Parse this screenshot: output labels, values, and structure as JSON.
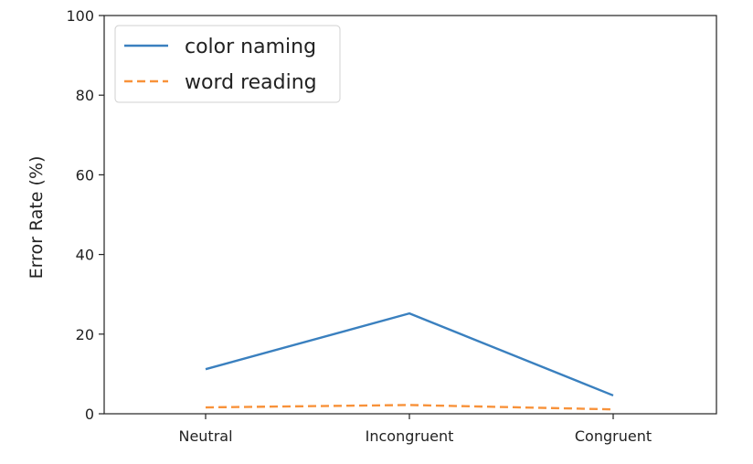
{
  "chart_data": {
    "type": "line",
    "categories": [
      "Neutral",
      "Incongruent",
      "Congruent"
    ],
    "series": [
      {
        "name": "color naming",
        "values": [
          11.2,
          25.2,
          4.6
        ],
        "color": "#3a80bf",
        "dash": "solid"
      },
      {
        "name": "word reading",
        "values": [
          1.6,
          2.2,
          1.1
        ],
        "color": "#f8923a",
        "dash": "dashed"
      }
    ],
    "title": "",
    "xlabel": "",
    "ylabel": "Error Rate (%)",
    "ylim": [
      0,
      100
    ],
    "yticks": [
      "0",
      "20",
      "40",
      "60",
      "80",
      "100"
    ],
    "grid": false,
    "legend_position": "top-left"
  }
}
